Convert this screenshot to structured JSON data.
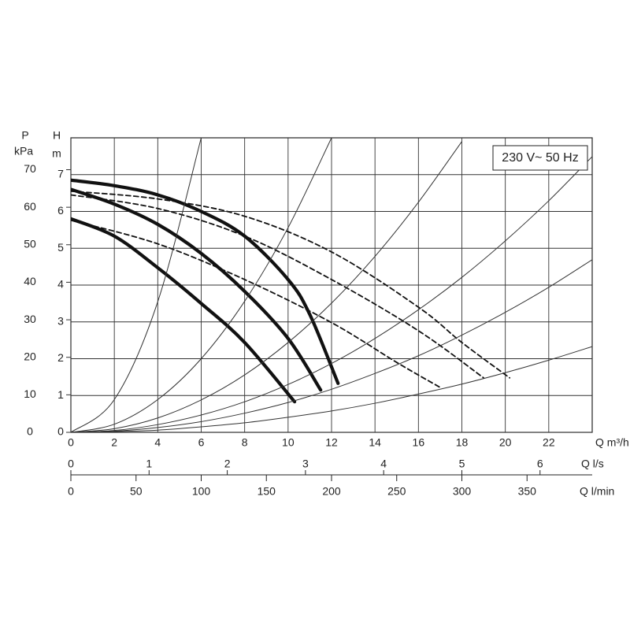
{
  "chart_data": {
    "type": "line",
    "annotation": "230 V~ 50 Hz",
    "x_label": "Q m³/h",
    "y_label": "H",
    "y_unit": "m",
    "y2_label": "P",
    "y2_unit": "kPa",
    "grid": true,
    "xlim": [
      0,
      24
    ],
    "xticks": [
      0,
      2,
      4,
      6,
      8,
      10,
      12,
      14,
      16,
      18,
      20,
      22
    ],
    "ylim": [
      0,
      8
    ],
    "yticks": [
      0,
      1,
      2,
      3,
      4,
      5,
      6,
      7
    ],
    "y2lim": [
      0,
      78.5
    ],
    "y2ticks": [
      0,
      10,
      20,
      30,
      40,
      50,
      60,
      70
    ],
    "secondary_x_axes": [
      {
        "label": "Q l/s",
        "xlim": [
          0,
          6.667
        ],
        "xticks": [
          0,
          1,
          2,
          3,
          4,
          5,
          6
        ]
      },
      {
        "label": "Q l/min",
        "xlim": [
          0,
          400
        ],
        "xticks": [
          0,
          50,
          100,
          150,
          200,
          250,
          300,
          350
        ]
      }
    ],
    "series": [
      {
        "style": "thick",
        "color": "#111111",
        "x": [
          0,
          2,
          4,
          6,
          8,
          10,
          11,
          12.3
        ],
        "values": [
          6.85,
          6.7,
          6.45,
          6.0,
          5.33,
          4.15,
          3.2,
          1.33
        ]
      },
      {
        "style": "thick",
        "color": "#111111",
        "x": [
          0,
          2,
          4,
          6,
          8,
          10,
          11.5
        ],
        "values": [
          6.6,
          6.2,
          5.65,
          4.86,
          3.83,
          2.55,
          1.15
        ]
      },
      {
        "style": "thick",
        "color": "#111111",
        "x": [
          0,
          2,
          4,
          6,
          8,
          10.3
        ],
        "values": [
          5.8,
          5.33,
          4.47,
          3.5,
          2.44,
          0.83
        ]
      },
      {
        "style": "dashed",
        "color": "#111111",
        "x": [
          0,
          4,
          8,
          12,
          16,
          18,
          20.2
        ],
        "values": [
          6.55,
          6.34,
          5.87,
          4.9,
          3.4,
          2.44,
          1.48
        ]
      },
      {
        "style": "dashed",
        "color": "#111111",
        "x": [
          0,
          4,
          8,
          12,
          16,
          19
        ],
        "values": [
          6.45,
          6.08,
          5.33,
          4.15,
          2.76,
          1.48
        ]
      },
      {
        "style": "dashed",
        "color": "#111111",
        "x": [
          0,
          4,
          8,
          12,
          15,
          17
        ],
        "values": [
          5.76,
          5.12,
          4.15,
          2.98,
          1.9,
          1.22
        ]
      },
      {
        "style": "thin",
        "color": "#333333",
        "x": [
          0,
          2,
          4,
          6
        ],
        "values": [
          0,
          0.89,
          3.55,
          8.0
        ]
      },
      {
        "style": "thin",
        "color": "#333333",
        "x": [
          0,
          2,
          4,
          6,
          8,
          10,
          12
        ],
        "values": [
          0,
          0.22,
          0.89,
          2.0,
          3.56,
          5.56,
          8.0
        ]
      },
      {
        "style": "thin",
        "color": "#333333",
        "x": [
          0,
          2,
          4,
          6,
          8,
          10,
          12,
          14,
          16,
          18
        ],
        "values": [
          0,
          0.1,
          0.39,
          0.88,
          1.56,
          2.44,
          3.51,
          4.78,
          6.25,
          7.9
        ]
      },
      {
        "style": "thin",
        "color": "#333333",
        "x": [
          0,
          2,
          4,
          6,
          8,
          10,
          12,
          14,
          16,
          18,
          20,
          22,
          24
        ],
        "values": [
          0,
          0.05,
          0.21,
          0.47,
          0.83,
          1.3,
          1.87,
          2.55,
          3.33,
          4.21,
          5.2,
          6.29,
          7.49
        ]
      },
      {
        "style": "thin",
        "color": "#333333",
        "x": [
          0,
          2,
          4,
          6,
          8,
          10,
          12,
          14,
          16,
          18,
          20,
          22,
          24
        ],
        "values": [
          0,
          0.03,
          0.13,
          0.29,
          0.52,
          0.81,
          1.17,
          1.6,
          2.08,
          2.64,
          3.26,
          3.94,
          4.69
        ]
      },
      {
        "style": "thin",
        "color": "#333333",
        "x": [
          0,
          2,
          4,
          6,
          8,
          10,
          12,
          14,
          16,
          18,
          20,
          22,
          24
        ],
        "values": [
          0,
          0.02,
          0.06,
          0.15,
          0.26,
          0.41,
          0.58,
          0.79,
          1.04,
          1.31,
          1.62,
          1.96,
          2.33
        ]
      }
    ]
  }
}
